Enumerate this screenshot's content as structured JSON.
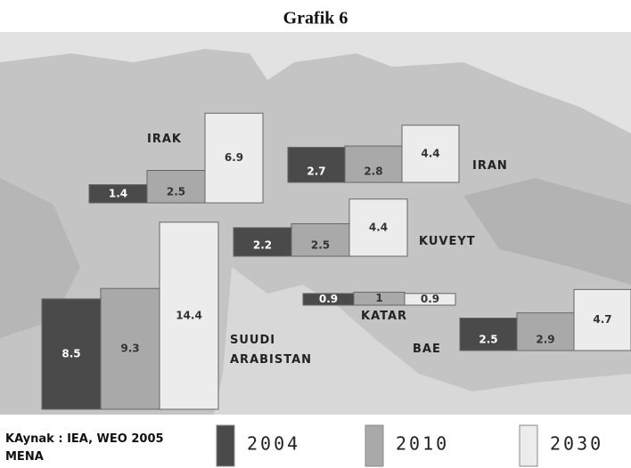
{
  "chart_data": {
    "type": "bar",
    "title": "Grafik 6",
    "source": "KAynak : IEA, WEO 2005 MENA",
    "categories": [
      "IRAK",
      "IRAN",
      "KUVEYT",
      "KATAR",
      "BAE",
      "SUUDI ARABISTAN"
    ],
    "series": [
      {
        "name": "2004",
        "color": "#4a4a4a",
        "values": [
          1.4,
          2.7,
          2.2,
          0.9,
          2.5,
          8.5
        ]
      },
      {
        "name": "2010",
        "color": "#a9a9a9",
        "values": [
          2.5,
          2.8,
          2.5,
          1,
          2.9,
          9.3
        ]
      },
      {
        "name": "2030",
        "color": "#ececec",
        "values": [
          6.9,
          4.4,
          4.4,
          0.9,
          4.7,
          14.4
        ]
      }
    ]
  }
}
